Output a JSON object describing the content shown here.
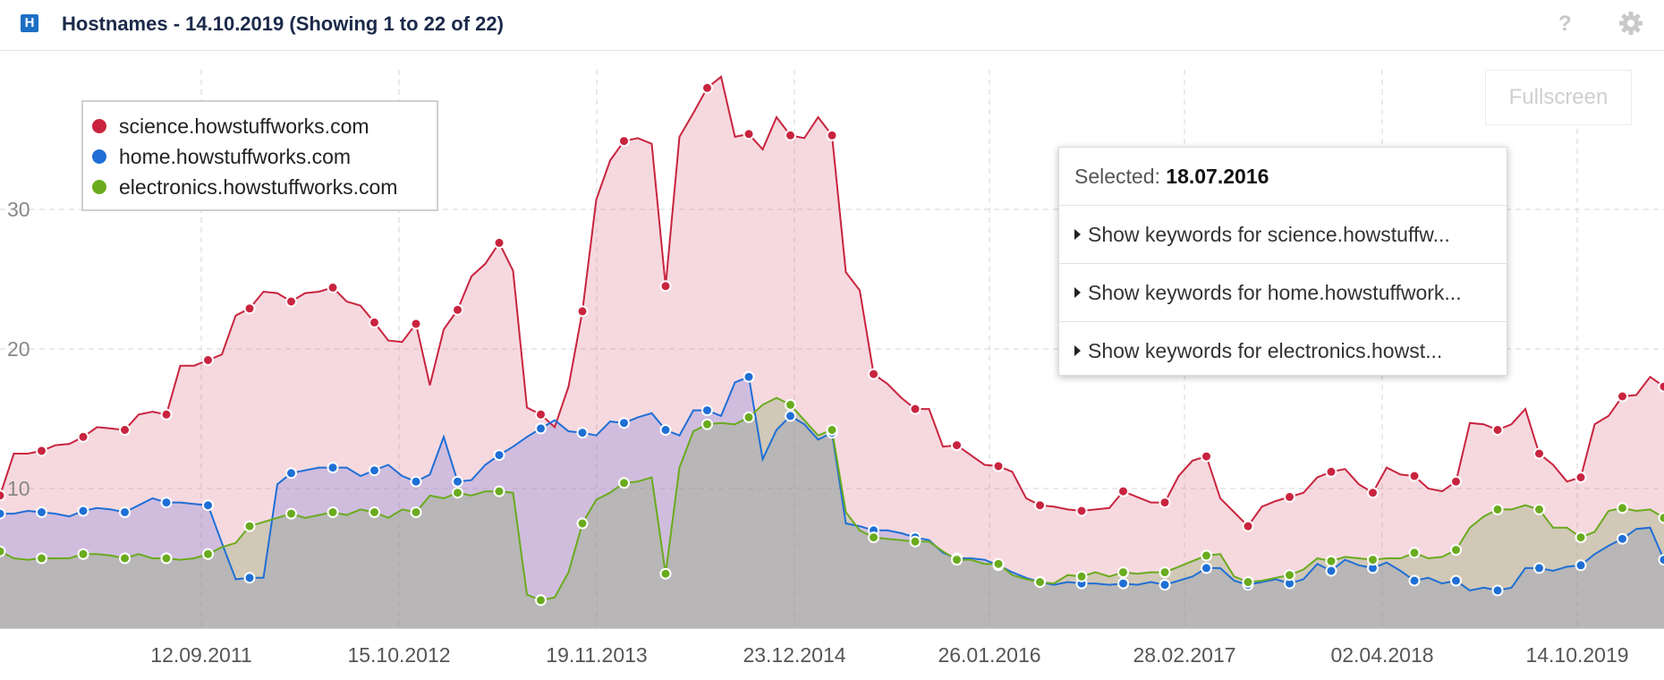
{
  "header": {
    "badge": "H",
    "title": "Hostnames - 14.10.2019 (Showing 1 to 22 of 22)",
    "help": "?"
  },
  "icons": {
    "badge": "h-badge-icon",
    "help": "question-icon",
    "settings": "gear-icon"
  },
  "toolbar": {
    "fullscreen_label": "Fullscreen"
  },
  "popup": {
    "selected_label": "Selected:",
    "selected_date": "18.07.2016",
    "items": [
      "Show keywords for science.howstuffw...",
      "Show keywords for home.howstuffwork...",
      "Show keywords for electronics.howst..."
    ]
  },
  "chart_data": {
    "type": "area",
    "x_tick_labels": [
      "12.09.2011",
      "15.10.2012",
      "19.11.2013",
      "23.12.2014",
      "26.01.2016",
      "28.02.2017",
      "02.04.2018",
      "14.10.2019"
    ],
    "y_tick_labels": [
      "10",
      "20",
      "30"
    ],
    "ylim": [
      0,
      40
    ],
    "grid": true,
    "legend_position": "top-left",
    "series": [
      {
        "name": "science.howstuffworks.com",
        "color": "#c9243f",
        "values": [
          9.5,
          12.5,
          12.5,
          12.7,
          13.1,
          13.2,
          13.7,
          14.4,
          14.3,
          14.2,
          15.3,
          15.5,
          15.3,
          18.8,
          18.8,
          19.2,
          19.6,
          22.4,
          22.9,
          24.1,
          24.0,
          23.4,
          24.0,
          24.1,
          24.4,
          23.4,
          23.1,
          21.9,
          20.6,
          20.5,
          21.8,
          17.4,
          21.4,
          22.8,
          25.2,
          26.1,
          27.6,
          25.6,
          15.8,
          15.3,
          14.4,
          17.3,
          22.7,
          30.7,
          33.5,
          34.9,
          35.1,
          34.7,
          24.5,
          35.2,
          36.9,
          38.7,
          39.5,
          35.2,
          35.4,
          34.3,
          36.6,
          35.3,
          35.1,
          36.6,
          35.3,
          25.5,
          24.2,
          18.2,
          17.5,
          16.5,
          15.7,
          15.7,
          13.0,
          13.1,
          12.4,
          11.7,
          11.6,
          11.2,
          9.3,
          8.8,
          8.7,
          8.5,
          8.4,
          8.5,
          8.6,
          9.8,
          9.4,
          9.0,
          9.0,
          10.9,
          12.0,
          12.3,
          9.3,
          8.3,
          7.3,
          8.7,
          9.1,
          9.4,
          9.7,
          10.8,
          11.2,
          11.4,
          10.3,
          9.7,
          11.5,
          11.0,
          10.9,
          10.0,
          9.8,
          10.5,
          14.7,
          14.6,
          14.2,
          14.6,
          15.7,
          12.5,
          11.7,
          10.5,
          10.8,
          14.6,
          15.2,
          16.6,
          16.7,
          18.0,
          17.3
        ]
      },
      {
        "name": "home.howstuffworks.com",
        "color": "#1f6fd6",
        "values": [
          8.2,
          8.2,
          8.4,
          8.3,
          8.2,
          8.0,
          8.4,
          8.6,
          8.5,
          8.3,
          8.8,
          9.3,
          9.0,
          9.0,
          8.9,
          8.8,
          6.1,
          3.5,
          3.6,
          3.6,
          10.3,
          11.1,
          11.3,
          11.5,
          11.5,
          11.5,
          10.9,
          11.3,
          11.7,
          10.9,
          10.5,
          11.0,
          13.7,
          10.5,
          10.6,
          11.7,
          12.4,
          13.0,
          13.7,
          14.3,
          14.9,
          14.1,
          14.0,
          13.8,
          14.8,
          14.7,
          15.1,
          15.4,
          14.2,
          13.8,
          15.6,
          15.6,
          15.2,
          17.6,
          18.0,
          12.1,
          14.2,
          15.2,
          14.6,
          13.5,
          14.0,
          7.5,
          7.3,
          7.0,
          7.0,
          6.8,
          6.5,
          6.3,
          5.4,
          5.0,
          5.0,
          4.9,
          4.5,
          4.0,
          3.6,
          3.3,
          3.1,
          3.3,
          3.2,
          3.2,
          3.1,
          3.2,
          3.1,
          3.3,
          3.1,
          3.4,
          3.7,
          4.3,
          4.3,
          3.4,
          3.1,
          3.3,
          3.5,
          3.2,
          3.5,
          4.6,
          4.1,
          4.9,
          4.5,
          4.3,
          4.7,
          4.1,
          3.4,
          3.6,
          3.2,
          3.4,
          2.7,
          2.9,
          2.7,
          2.9,
          4.3,
          4.3,
          4.1,
          4.4,
          4.5,
          5.3,
          5.9,
          6.4,
          7.1,
          7.2,
          4.9
        ]
      },
      {
        "name": "electronics.howstuffworks.com",
        "color": "#6aab1e",
        "values": [
          5.5,
          5.0,
          4.9,
          5.0,
          5.0,
          5.0,
          5.3,
          5.3,
          5.2,
          5.0,
          5.3,
          5.0,
          5.0,
          4.9,
          5.0,
          5.3,
          5.8,
          6.1,
          7.3,
          7.6,
          7.9,
          8.2,
          7.9,
          8.1,
          8.3,
          8.1,
          8.5,
          8.3,
          7.9,
          8.5,
          8.3,
          9.5,
          9.3,
          9.7,
          9.5,
          9.8,
          9.8,
          9.7,
          2.4,
          2.0,
          2.2,
          4.0,
          7.5,
          9.2,
          9.7,
          10.4,
          10.5,
          10.8,
          3.9,
          11.5,
          14.1,
          14.6,
          14.7,
          14.6,
          15.1,
          16.0,
          16.5,
          16.0,
          14.9,
          13.8,
          14.2,
          8.3,
          7.0,
          6.5,
          6.4,
          6.3,
          6.2,
          6.2,
          5.5,
          4.9,
          4.9,
          4.6,
          4.6,
          3.8,
          3.5,
          3.3,
          3.2,
          3.8,
          3.7,
          4.0,
          3.7,
          4.0,
          3.9,
          4.0,
          4.0,
          4.4,
          4.8,
          5.2,
          5.3,
          3.7,
          3.3,
          3.4,
          3.6,
          3.8,
          4.2,
          5.0,
          4.8,
          5.1,
          5.0,
          4.9,
          5.0,
          5.0,
          5.4,
          5.0,
          5.1,
          5.6,
          7.2,
          8.0,
          8.5,
          8.5,
          8.8,
          8.5,
          7.2,
          7.2,
          6.5,
          6.9,
          8.4,
          8.6,
          8.4,
          8.5,
          7.9
        ]
      }
    ]
  }
}
